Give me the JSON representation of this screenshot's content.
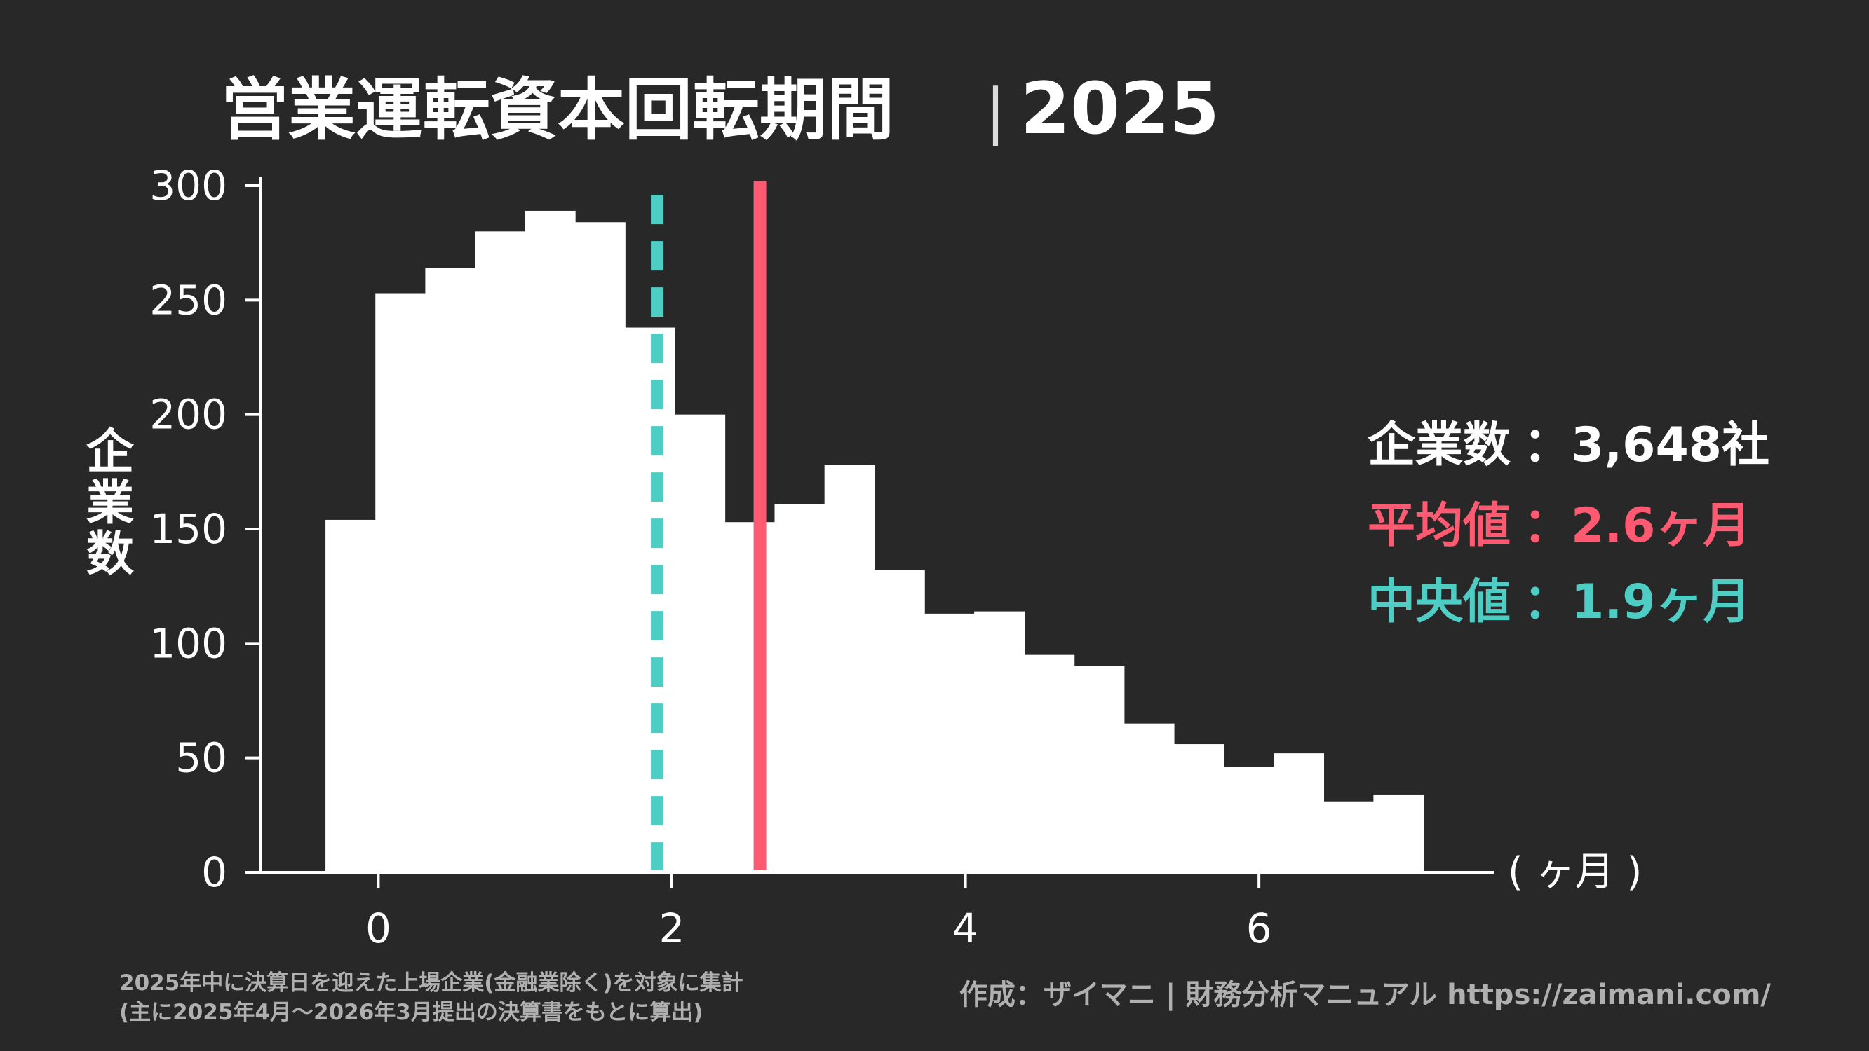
{
  "page": {
    "background": "#282828",
    "title": "営業運転資本回転期間",
    "title_separator": "|",
    "title_year": "2025"
  },
  "chart_data": {
    "type": "bar",
    "title": "営業運転資本回転期間｜2025",
    "ylabel": "企業数",
    "xlabel": "( ヶ月 )",
    "xlim": [
      -0.8,
      7.6
    ],
    "ylim": [
      0,
      300
    ],
    "x_ticks": [
      "0",
      "2",
      "4",
      "6"
    ],
    "y_ticks": [
      "0",
      "50",
      "100",
      "150",
      "200",
      "250",
      "300"
    ],
    "bin_width": 0.34,
    "bins": [
      {
        "start": -0.36,
        "value": 154
      },
      {
        "start": -0.02,
        "value": 253
      },
      {
        "start": 0.32,
        "value": 264
      },
      {
        "start": 0.66,
        "value": 280
      },
      {
        "start": 1.0,
        "value": 289
      },
      {
        "start": 1.34,
        "value": 284
      },
      {
        "start": 1.68,
        "value": 238
      },
      {
        "start": 2.02,
        "value": 200
      },
      {
        "start": 2.36,
        "value": 153
      },
      {
        "start": 2.7,
        "value": 161
      },
      {
        "start": 3.04,
        "value": 178
      },
      {
        "start": 3.38,
        "value": 132
      },
      {
        "start": 3.72,
        "value": 113
      },
      {
        "start": 4.06,
        "value": 114
      },
      {
        "start": 4.4,
        "value": 95
      },
      {
        "start": 4.74,
        "value": 90
      },
      {
        "start": 5.08,
        "value": 65
      },
      {
        "start": 5.42,
        "value": 56
      },
      {
        "start": 5.76,
        "value": 46
      },
      {
        "start": 6.1,
        "value": 52
      },
      {
        "start": 6.44,
        "value": 31
      },
      {
        "start": 6.78,
        "value": 34
      }
    ],
    "bar_color": "#ffffff",
    "mean": {
      "value": 2.6,
      "label": "平均値",
      "display": "2.6ヶ月",
      "color": "#ff5a72"
    },
    "median": {
      "value": 1.9,
      "label": "中央値",
      "display": "1.9ヶ月",
      "color": "#4ecdc4"
    },
    "company_count": {
      "label": "企業数",
      "display": "3,648社",
      "color": "#ffffff"
    },
    "separator": "：",
    "grid": false,
    "legend_position": "right"
  },
  "footer": {
    "note_line1": "2025年中に決算日を迎えた上場企業(金融業除く)を対象に集計",
    "note_line2": "(主に2025年4月〜2026年3月提出の決算書をもとに算出)",
    "credit": "作成：ザイマニ | 財務分析マニュアル https://zaimani.com/",
    "text_color": "#b0b0b0"
  }
}
